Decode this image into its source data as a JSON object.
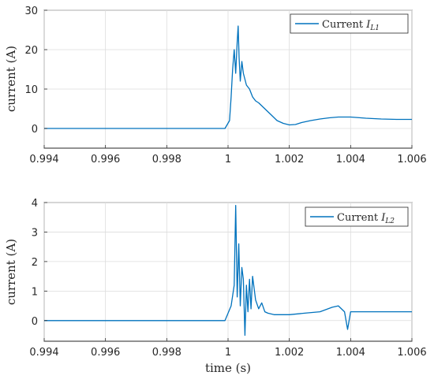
{
  "chart_data": [
    {
      "type": "line",
      "ylabel": "current (A)",
      "xlabel": "",
      "xlim": [
        0.994,
        1.006
      ],
      "ylim": [
        -5,
        30
      ],
      "xticks": [
        "0.994",
        "0.996",
        "0.998",
        "1",
        "1.002",
        "1.004",
        "1.006"
      ],
      "yticks": [
        "0",
        "10",
        "20",
        "30"
      ],
      "grid": true,
      "legend_position": "top-right",
      "series": [
        {
          "name": "Current",
          "subscript": "L1",
          "color": "#0072BD",
          "x": [
            0.994,
            0.9999,
            1.00005,
            1.0001,
            1.00015,
            1.0002,
            1.00025,
            1.0003,
            1.00033,
            1.00036,
            1.0004,
            1.00045,
            1.0005,
            1.0006,
            1.0007,
            1.0008,
            1.0009,
            1.001,
            1.0012,
            1.0014,
            1.0016,
            1.0018,
            1.002,
            1.0022,
            1.0024,
            1.0027,
            1.003,
            1.0033,
            1.0036,
            1.004,
            1.0045,
            1.005,
            1.0055,
            1.006
          ],
          "y": [
            0,
            0,
            2,
            8,
            15,
            20,
            14,
            22,
            26,
            18,
            12,
            17,
            14,
            11,
            10,
            8,
            7,
            6.5,
            5,
            3.5,
            2,
            1.3,
            0.9,
            1,
            1.5,
            2,
            2.4,
            2.7,
            2.9,
            2.9,
            2.6,
            2.4,
            2.3,
            2.3
          ]
        }
      ]
    },
    {
      "type": "line",
      "ylabel": "current (A)",
      "xlabel": "time (s)",
      "xlim": [
        0.994,
        1.006
      ],
      "ylim": [
        -0.7,
        4
      ],
      "xticks": [
        "0.994",
        "0.996",
        "0.998",
        "1",
        "1.002",
        "1.004",
        "1.006"
      ],
      "yticks": [
        "0",
        "1",
        "2",
        "3",
        "4"
      ],
      "grid": true,
      "legend_position": "top-right",
      "series": [
        {
          "name": "Current",
          "subscript": "L2",
          "color": "#0072BD",
          "x": [
            0.994,
            0.9999,
            1.0001,
            1.0002,
            1.00025,
            1.0003,
            1.00035,
            1.0004,
            1.00045,
            1.0005,
            1.00055,
            1.0006,
            1.00065,
            1.0007,
            1.00075,
            1.0008,
            1.0009,
            1.001,
            1.0011,
            1.0012,
            1.0013,
            1.0015,
            1.002,
            1.0025,
            1.003,
            1.0034,
            1.0036,
            1.0038,
            1.0039,
            1.004,
            1.0045,
            1.005,
            1.0055,
            1.006
          ],
          "y": [
            0,
            0,
            0.5,
            1.2,
            3.9,
            0.8,
            2.6,
            0.5,
            1.8,
            1.4,
            -0.5,
            1.2,
            0.3,
            1.4,
            0.4,
            1.5,
            0.7,
            0.4,
            0.6,
            0.3,
            0.25,
            0.2,
            0.2,
            0.25,
            0.3,
            0.45,
            0.5,
            0.3,
            -0.3,
            0.3,
            0.3,
            0.3,
            0.3,
            0.3
          ]
        }
      ]
    }
  ]
}
